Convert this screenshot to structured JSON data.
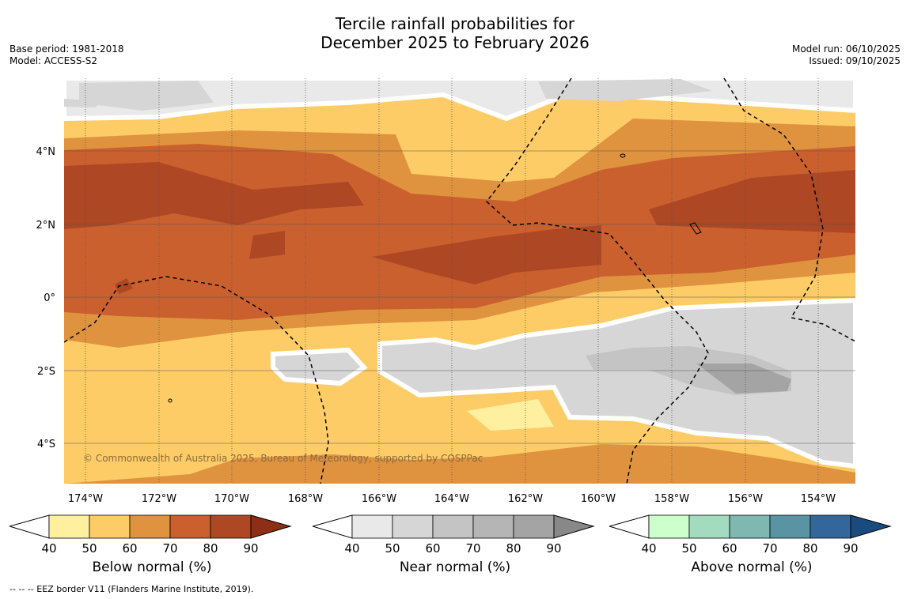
{
  "title_line1": "Tercile rainfall probabilities for",
  "title_line2": "December 2025 to February 2026",
  "base_period": "Base period: 1981-2018",
  "model": "Model: ACCESS-S2",
  "model_run": "Model run: 06/10/2025",
  "issued": "Issued: 09/10/2025",
  "copyright": "© Commonwealth of Australia 2025, Bureau of Meteorology, supported by COSPPac",
  "footnote": "-- -- -- EEZ border V11 (Flanders Marine Institute, 2019).",
  "lon_labels": [
    "174°W",
    "172°W",
    "170°W",
    "168°W",
    "166°W",
    "164°W",
    "162°W",
    "160°W",
    "158°W",
    "156°W",
    "154°W"
  ],
  "lat_labels": [
    "4°N",
    "2°N",
    "0°",
    "2°S",
    "4°S"
  ],
  "colorbars": [
    {
      "title": "Below normal (%)",
      "ticks": [
        "40",
        "50",
        "60",
        "70",
        "80",
        "90"
      ],
      "colors": [
        "#fff0a0",
        "#fdcc66",
        "#e0933f",
        "#cb602f",
        "#ad4724",
        "#8d2e15"
      ]
    },
    {
      "title": "Near normal (%)",
      "ticks": [
        "40",
        "50",
        "60",
        "70",
        "80",
        "90"
      ],
      "colors": [
        "#e9e9e9",
        "#d6d6d6",
        "#c4c4c4",
        "#b5b5b5",
        "#a4a4a4",
        "#888888"
      ]
    },
    {
      "title": "Above normal (%)",
      "ticks": [
        "40",
        "50",
        "60",
        "70",
        "80",
        "90"
      ],
      "colors": [
        "#ccffcc",
        "#a3dbbf",
        "#7fb7b1",
        "#5a93a1",
        "#33679b",
        "#1a4b80"
      ]
    }
  ]
}
